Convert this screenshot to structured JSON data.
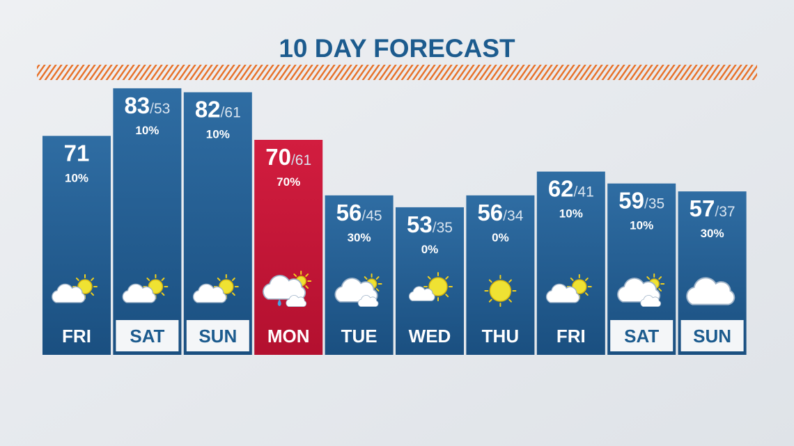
{
  "title": "10 DAY FORECAST",
  "days": [
    {
      "day": "FRI",
      "high": 71,
      "precip": "10%"
    },
    {
      "day": "SAT",
      "high": 83,
      "low": 53,
      "precip": "10%"
    },
    {
      "day": "SUN",
      "high": 82,
      "low": 61,
      "precip": "10%"
    },
    {
      "day": "MON",
      "high": 70,
      "low": 61,
      "precip": "70%"
    },
    {
      "day": "TUE",
      "high": 56,
      "low": 45,
      "precip": "30%"
    },
    {
      "day": "WED",
      "high": 53,
      "low": 35,
      "precip": "0%"
    },
    {
      "day": "THU",
      "high": 56,
      "low": 34,
      "precip": "0%"
    },
    {
      "day": "FRI",
      "high": 62,
      "low": 41,
      "precip": "10%"
    },
    {
      "day": "SAT",
      "high": 59,
      "low": 35,
      "precip": "10%"
    },
    {
      "day": "SUN",
      "high": 57,
      "low": 37,
      "precip": "30%"
    }
  ]
}
